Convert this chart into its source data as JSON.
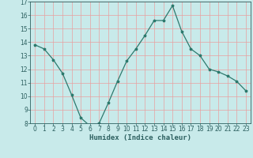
{
  "x": [
    0,
    1,
    2,
    3,
    4,
    5,
    6,
    7,
    8,
    9,
    10,
    11,
    12,
    13,
    14,
    15,
    16,
    17,
    18,
    19,
    20,
    21,
    22,
    23
  ],
  "y": [
    13.8,
    13.5,
    12.7,
    11.7,
    10.1,
    8.4,
    7.8,
    8.0,
    9.5,
    11.1,
    12.6,
    13.5,
    14.5,
    15.6,
    15.6,
    16.7,
    14.8,
    13.5,
    13.0,
    12.0,
    11.8,
    11.5,
    11.1,
    10.4
  ],
  "xlabel": "Humidex (Indice chaleur)",
  "ylim": [
    8,
    17
  ],
  "xlim_min": -0.5,
  "xlim_max": 23.5,
  "yticks": [
    8,
    9,
    10,
    11,
    12,
    13,
    14,
    15,
    16,
    17
  ],
  "xticks": [
    0,
    1,
    2,
    3,
    4,
    5,
    6,
    7,
    8,
    9,
    10,
    11,
    12,
    13,
    14,
    15,
    16,
    17,
    18,
    19,
    20,
    21,
    22,
    23
  ],
  "line_color": "#2d7a6e",
  "marker": "*",
  "bg_color": "#c8eaea",
  "grid_color": "#e8a0a0",
  "axis_color": "#2d6060",
  "label_color": "#2d6060",
  "tick_fontsize": 5.5,
  "xlabel_fontsize": 6.5
}
